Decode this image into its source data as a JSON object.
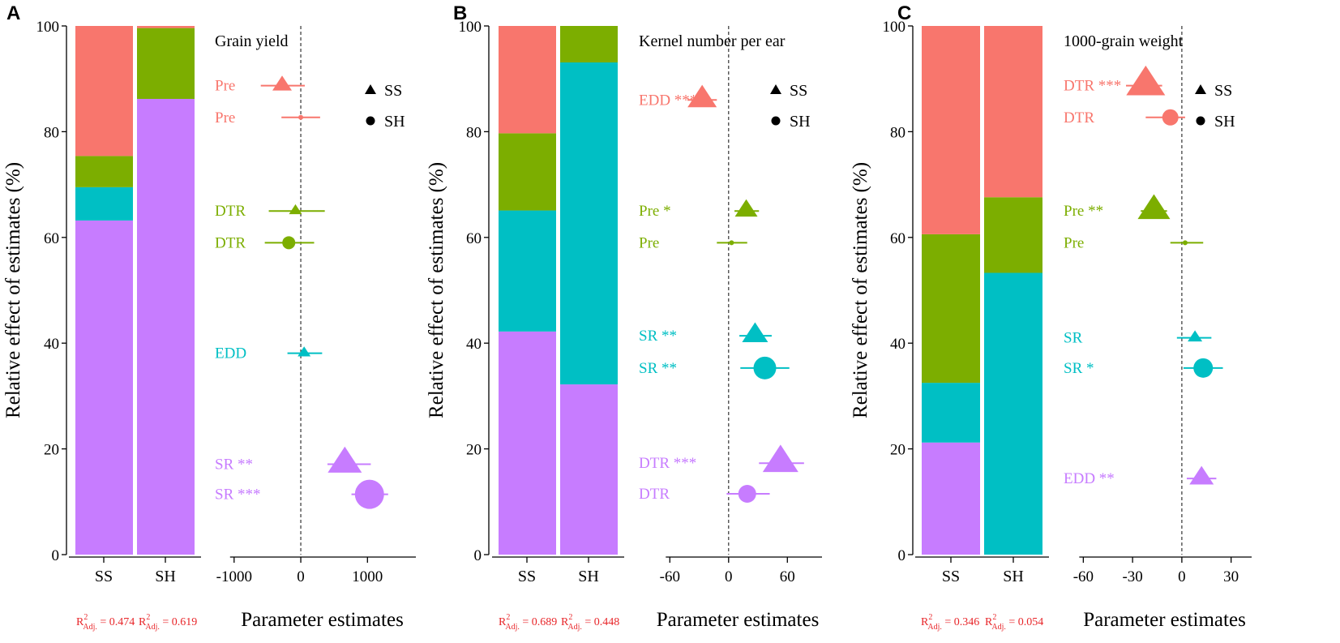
{
  "colors": {
    "Pre": "#F8766D",
    "DTR": "#F8766D",
    "EDD": "#F8766D",
    "green": "#7CAE00",
    "teal": "#00BFC4",
    "purple": "#C77CFF",
    "r2_text": "#E8262A",
    "axis": "#000000"
  },
  "chart_data": [
    {
      "type": "bar",
      "panel_letter": "A",
      "title": "Grain yield",
      "ylabel": "Relative effect of estimates (%)",
      "xlabel": "Parameter estimates",
      "ylim": [
        0,
        100
      ],
      "yticks": [
        "0",
        "20",
        "40",
        "60",
        "80",
        "100"
      ],
      "categories": [
        "SS",
        "SH"
      ],
      "r2_prefix": "R",
      "r2_sup": "2",
      "r2_sub": "Adj.",
      "r2_values": [
        " = 0.474",
        " = 0.619"
      ],
      "stack": [
        {
          "segments": [
            {
              "value": 63.2,
              "color": "#C77CFF"
            },
            {
              "value": 6.3,
              "color": "#00BFC4"
            },
            {
              "value": 5.9,
              "color": "#7CAE00"
            },
            {
              "value": 24.6,
              "color": "#F8766D"
            }
          ]
        },
        {
          "segments": [
            {
              "value": 86.2,
              "color": "#C77CFF"
            },
            {
              "value": 13.4,
              "color": "#7CAE00"
            },
            {
              "value": 0.4,
              "color": "#F8766D"
            }
          ]
        }
      ],
      "forest": {
        "xlim": [
          -1350,
          1750
        ],
        "xticks": [
          {
            "v": -1000,
            "label": "-1000"
          },
          {
            "v": 0,
            "label": "0"
          },
          {
            "v": 1000,
            "label": "1000"
          }
        ],
        "legend": [
          {
            "shape": "triangle",
            "label": "SS"
          },
          {
            "shape": "circle",
            "label": "SH"
          }
        ],
        "points": [
          {
            "label": "Pre",
            "color": "#F8766D",
            "y": 88.7,
            "est": -280,
            "lo": -600,
            "hi": 60,
            "shape": "triangle",
            "size": 12
          },
          {
            "label": "Pre",
            "color": "#F8766D",
            "y": 82.7,
            "est": 0,
            "lo": -290,
            "hi": 290,
            "shape": "circle",
            "size": 3
          },
          {
            "label": "DTR",
            "color": "#7CAE00",
            "y": 65.0,
            "est": -80,
            "lo": -480,
            "hi": 360,
            "shape": "triangle",
            "size": 8
          },
          {
            "label": "DTR",
            "color": "#7CAE00",
            "y": 59.0,
            "est": -180,
            "lo": -540,
            "hi": 200,
            "shape": "circle",
            "size": 8
          },
          {
            "label": "EDD",
            "color": "#00BFC4",
            "y": 38.1,
            "est": 50,
            "lo": -200,
            "hi": 320,
            "shape": "triangle",
            "size": 8
          },
          {
            "label": "SR **",
            "color": "#C77CFF",
            "y": 17.1,
            "est": 660,
            "lo": 400,
            "hi": 1050,
            "shape": "triangle",
            "size": 21
          },
          {
            "label": "SR ***",
            "color": "#C77CFF",
            "y": 11.4,
            "est": 1030,
            "lo": 760,
            "hi": 1310,
            "shape": "circle",
            "size": 18
          }
        ]
      }
    },
    {
      "type": "bar",
      "panel_letter": "B",
      "title": "Kernel number per ear",
      "ylabel": "Relative effect of estimates (%)",
      "xlabel": "Parameter estimates",
      "ylim": [
        0,
        100
      ],
      "yticks": [
        "0",
        "20",
        "40",
        "60",
        "80",
        "100"
      ],
      "categories": [
        "SS",
        "SH"
      ],
      "r2_prefix": "R",
      "r2_sup": "2",
      "r2_sub": "Adj.",
      "r2_values": [
        " = 0.689",
        " = 0.448"
      ],
      "stack": [
        {
          "segments": [
            {
              "value": 42.2,
              "color": "#C77CFF"
            },
            {
              "value": 22.9,
              "color": "#00BFC4"
            },
            {
              "value": 14.6,
              "color": "#7CAE00"
            },
            {
              "value": 20.3,
              "color": "#F8766D"
            }
          ]
        },
        {
          "segments": [
            {
              "value": 32.2,
              "color": "#C77CFF"
            },
            {
              "value": 60.9,
              "color": "#00BFC4"
            },
            {
              "value": 6.9,
              "color": "#7CAE00"
            }
          ]
        }
      ],
      "forest": {
        "xlim": [
          -95,
          97
        ],
        "xticks": [
          {
            "v": -60,
            "label": "-60"
          },
          {
            "v": 0,
            "label": "0"
          },
          {
            "v": 60,
            "label": "60"
          }
        ],
        "legend": [
          {
            "shape": "triangle",
            "label": "SS"
          },
          {
            "shape": "circle",
            "label": "SH"
          }
        ],
        "points": [
          {
            "label": "EDD ***",
            "color": "#F8766D",
            "y": 86.0,
            "est": -27,
            "lo": -42,
            "hi": -12,
            "shape": "triangle",
            "size": 18
          },
          {
            "label": "Pre *",
            "color": "#7CAE00",
            "y": 65.0,
            "est": 18,
            "lo": 6,
            "hi": 31,
            "shape": "triangle",
            "size": 14
          },
          {
            "label": "Pre",
            "color": "#7CAE00",
            "y": 59.0,
            "est": 3,
            "lo": -12,
            "hi": 19,
            "shape": "circle",
            "size": 3
          },
          {
            "label": "SR **",
            "color": "#00BFC4",
            "y": 41.4,
            "est": 27,
            "lo": 11,
            "hi": 44,
            "shape": "triangle",
            "size": 16
          },
          {
            "label": "SR **",
            "color": "#00BFC4",
            "y": 35.3,
            "est": 37,
            "lo": 12,
            "hi": 62,
            "shape": "circle",
            "size": 14
          },
          {
            "label": "DTR ***",
            "color": "#C77CFF",
            "y": 17.3,
            "est": 53,
            "lo": 31,
            "hi": 77,
            "shape": "triangle",
            "size": 22
          },
          {
            "label": "DTR",
            "color": "#C77CFF",
            "y": 11.5,
            "est": 19,
            "lo": -2,
            "hi": 42,
            "shape": "circle",
            "size": 11
          }
        ]
      }
    },
    {
      "type": "bar",
      "panel_letter": "C",
      "title": "1000-grain weight",
      "ylabel": "Relative effect of estimates (%)",
      "xlabel": "Parameter estimates",
      "ylim": [
        0,
        100
      ],
      "yticks": [
        "0",
        "20",
        "40",
        "60",
        "80",
        "100"
      ],
      "categories": [
        "SS",
        "SH"
      ],
      "r2_prefix": "R",
      "r2_sup": "2",
      "r2_sub": "Adj.",
      "r2_values": [
        " = 0.346",
        " = 0.054"
      ],
      "stack": [
        {
          "segments": [
            {
              "value": 21.2,
              "color": "#C77CFF"
            },
            {
              "value": 11.3,
              "color": "#00BFC4"
            },
            {
              "value": 28.1,
              "color": "#7CAE00"
            },
            {
              "value": 39.4,
              "color": "#F8766D"
            }
          ]
        },
        {
          "segments": [
            {
              "value": 53.3,
              "color": "#00BFC4"
            },
            {
              "value": 14.3,
              "color": "#7CAE00"
            },
            {
              "value": 32.4,
              "color": "#F8766D"
            }
          ]
        }
      ],
      "forest": {
        "xlim": [
          -74,
          43
        ],
        "xticks": [
          {
            "v": -60,
            "label": "-60"
          },
          {
            "v": -30,
            "label": "-30"
          },
          {
            "v": 0,
            "label": "0"
          },
          {
            "v": 30,
            "label": "30"
          }
        ],
        "legend": [
          {
            "shape": "triangle",
            "label": "SS"
          },
          {
            "shape": "circle",
            "label": "SH"
          }
        ],
        "points": [
          {
            "label": "DTR ***",
            "color": "#F8766D",
            "y": 88.7,
            "est": -22,
            "lo": -34,
            "hi": -12,
            "shape": "triangle",
            "size": 24
          },
          {
            "label": "DTR",
            "color": "#F8766D",
            "y": 82.7,
            "est": -7,
            "lo": -22,
            "hi": 2,
            "shape": "circle",
            "size": 10
          },
          {
            "label": "Pre **",
            "color": "#7CAE00",
            "y": 65.0,
            "est": -17,
            "lo": -25,
            "hi": -9,
            "shape": "triangle",
            "size": 20
          },
          {
            "label": "Pre",
            "color": "#7CAE00",
            "y": 59.0,
            "est": 2,
            "lo": -7,
            "hi": 13,
            "shape": "circle",
            "size": 3
          },
          {
            "label": "SR",
            "color": "#00BFC4",
            "y": 41.0,
            "est": 8,
            "lo": -3,
            "hi": 18,
            "shape": "triangle",
            "size": 9
          },
          {
            "label": "SR *",
            "color": "#00BFC4",
            "y": 35.3,
            "est": 13,
            "lo": 1,
            "hi": 25,
            "shape": "circle",
            "size": 12
          },
          {
            "label": "EDD **",
            "color": "#C77CFF",
            "y": 14.4,
            "est": 12,
            "lo": 3,
            "hi": 21,
            "shape": "triangle",
            "size": 15
          }
        ]
      }
    }
  ]
}
